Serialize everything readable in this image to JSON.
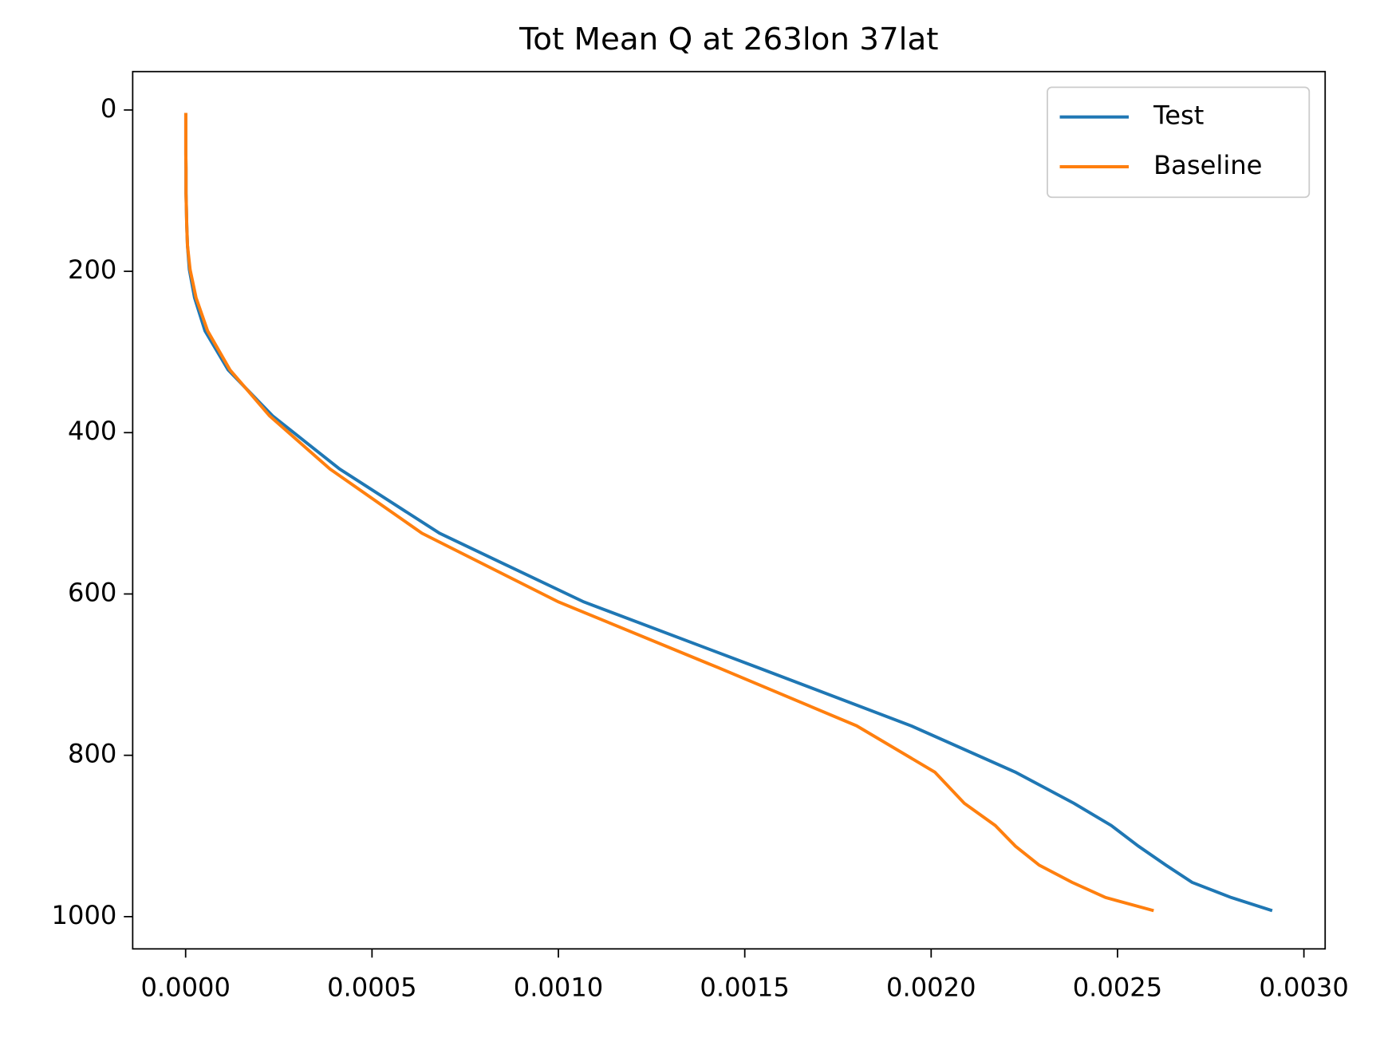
{
  "chart_data": {
    "type": "line",
    "title": "Tot Mean Q at 263lon 37lat",
    "y": [
      3.6,
      7.6,
      14.4,
      24.6,
      38.3,
      54.6,
      72.0,
      87.8,
      103.3,
      121.5,
      142.9,
      168.2,
      197.9,
      232.8,
      273.9,
      322.2,
      379.1,
      445.0,
      524.7,
      609.8,
      691.4,
      763.4,
      820.9,
      859.5,
      887.0,
      912.6,
      936.2,
      957.5,
      976.3,
      992.6
    ],
    "series": [
      {
        "name": "Test",
        "color": "#1f77b4",
        "values": [
          5e-07,
          5e-07,
          5e-07,
          5e-07,
          5e-07,
          5e-07,
          1e-06,
          1e-06,
          1e-06,
          2e-06,
          3e-06,
          5e-06,
          1e-05,
          2.4e-05,
          5.2e-05,
          0.000114,
          0.000233,
          0.000413,
          0.000681,
          0.001068,
          0.001536,
          0.001946,
          0.002226,
          0.002383,
          0.002483,
          0.002556,
          0.00263,
          0.0027,
          0.002805,
          0.002915
        ]
      },
      {
        "name": "Baseline",
        "color": "#ff7f0e",
        "values": [
          5e-07,
          5e-07,
          5e-07,
          5e-07,
          5e-07,
          5e-07,
          1e-06,
          1e-06,
          1e-06,
          2e-06,
          3e-06,
          5e-06,
          1.2e-05,
          2.8e-05,
          5.9e-05,
          0.000119,
          0.000225,
          0.000387,
          0.000634,
          0.001,
          0.001429,
          0.0018,
          0.00201,
          0.002089,
          0.002172,
          0.002226,
          0.00229,
          0.002378,
          0.002468,
          0.002597
        ]
      }
    ],
    "xlim": [
      -0.000142,
      0.003057
    ],
    "ylim": [
      1040,
      -47.6
    ],
    "y_inverted": true,
    "xticks": [
      {
        "value": 0,
        "label": "0.0000"
      },
      {
        "value": 0.0005,
        "label": "0.0005"
      },
      {
        "value": 0.001,
        "label": "0.0010"
      },
      {
        "value": 0.0015,
        "label": "0.0015"
      },
      {
        "value": 0.002,
        "label": "0.0020"
      },
      {
        "value": 0.0025,
        "label": "0.0025"
      },
      {
        "value": 0.003,
        "label": "0.0030"
      }
    ],
    "yticks": [
      0,
      200,
      400,
      600,
      800,
      1000
    ],
    "grid": false,
    "legend": "upper right"
  }
}
